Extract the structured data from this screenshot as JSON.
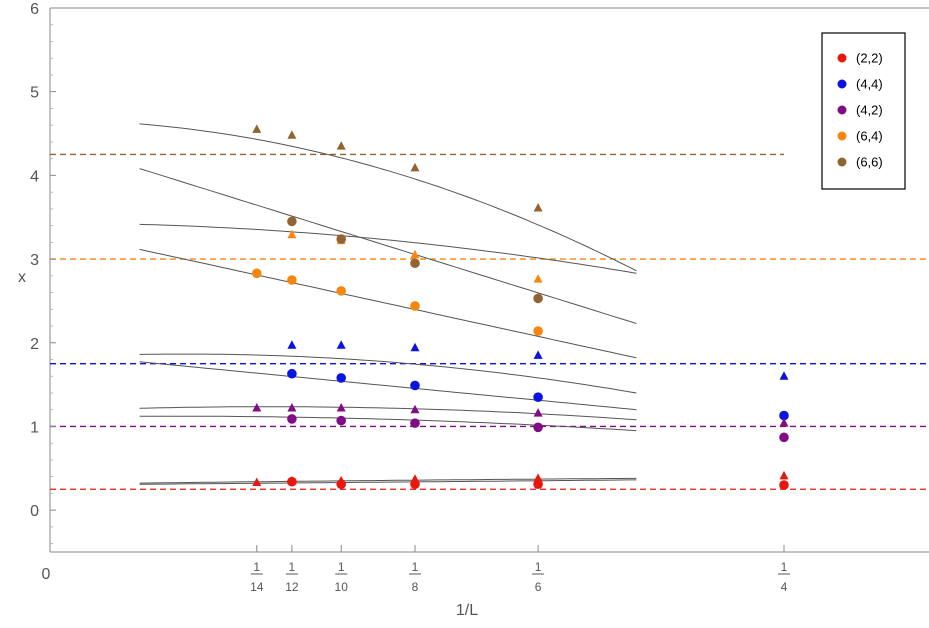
{
  "chart_data": {
    "type": "scatter",
    "title": "",
    "xlabel": "1/L",
    "ylabel": "x",
    "xlim": [
      0,
      0.35
    ],
    "ylim": [
      -0.5,
      6
    ],
    "grid": false,
    "legend_position": "top-right",
    "y_ticks": [
      "0",
      "1",
      "2",
      "3",
      "4",
      "5",
      "6"
    ],
    "x_origin_label": "0",
    "x_ticks": [
      {
        "value": 0.0714,
        "numerator": "1",
        "denominator": "14"
      },
      {
        "value": 0.0833,
        "numerator": "1",
        "denominator": "12"
      },
      {
        "value": 0.1,
        "numerator": "1",
        "denominator": "10"
      },
      {
        "value": 0.125,
        "numerator": "1",
        "denominator": "8"
      },
      {
        "value": 0.1667,
        "numerator": "1",
        "denominator": "6"
      },
      {
        "value": 0.25,
        "numerator": "1",
        "denominator": "4"
      }
    ],
    "series": [
      {
        "name": "(2,2)",
        "color": "#e8180c",
        "reference": 0.25,
        "circles": [
          [
            0.0833,
            0.34
          ],
          [
            0.1,
            0.31
          ],
          [
            0.125,
            0.31
          ],
          [
            0.1667,
            0.31
          ],
          [
            0.25,
            0.3
          ]
        ],
        "triangles": [
          [
            0.0714,
            0.33
          ],
          [
            0.0833,
            0.35
          ],
          [
            0.1,
            0.35
          ],
          [
            0.125,
            0.37
          ],
          [
            0.1667,
            0.38
          ],
          [
            0.25,
            0.41
          ]
        ],
        "curves": [
          [
            0.3,
            0.29,
            0.1
          ],
          [
            0.31,
            0.45,
            -0.5
          ]
        ]
      },
      {
        "name": "(4,4)",
        "color": "#0a14e0",
        "reference": 1.75,
        "circles": [
          [
            0.0833,
            1.63
          ],
          [
            0.1,
            1.58
          ],
          [
            0.125,
            1.49
          ],
          [
            0.1667,
            1.35
          ],
          [
            0.25,
            1.13
          ]
        ],
        "triangles": [
          [
            0.0833,
            1.97
          ],
          [
            0.1,
            1.97
          ],
          [
            0.125,
            1.94
          ],
          [
            0.1667,
            1.85
          ],
          [
            0.25,
            1.6
          ]
        ],
        "curves": [
          [
            1.88,
            -3.4,
            0
          ],
          [
            1.82,
            1.9,
            -20
          ]
        ]
      },
      {
        "name": "(4,2)",
        "color": "#800d85",
        "reference": 1.0,
        "circles": [
          [
            0.0833,
            1.09
          ],
          [
            0.1,
            1.07
          ],
          [
            0.125,
            1.04
          ],
          [
            0.1667,
            0.99
          ],
          [
            0.25,
            0.87
          ]
        ],
        "triangles": [
          [
            0.0714,
            1.22
          ],
          [
            0.0833,
            1.22
          ],
          [
            0.1,
            1.22
          ],
          [
            0.125,
            1.2
          ],
          [
            0.1667,
            1.16
          ],
          [
            0.25,
            1.04
          ]
        ],
        "curves": [
          [
            1.18,
            1.5,
            -10
          ],
          [
            1.11,
            0.6,
            -7
          ]
        ]
      },
      {
        "name": "(6,4)",
        "color": "#f7860e",
        "reference": 3.0,
        "circles": [
          [
            0.0714,
            2.83
          ],
          [
            0.0833,
            2.75
          ],
          [
            0.1,
            2.62
          ],
          [
            0.125,
            2.44
          ],
          [
            0.1667,
            2.14
          ]
        ],
        "triangles": [
          [
            0.0833,
            3.29
          ],
          [
            0.1,
            3.22
          ],
          [
            0.125,
            3.05
          ],
          [
            0.1667,
            2.76
          ]
        ],
        "curves": [
          [
            3.36,
            -7.7,
            0
          ],
          [
            3.43,
            0,
            -15
          ]
        ]
      },
      {
        "name": "(6,6)",
        "color": "#946333",
        "reference": 4.25,
        "circles": [
          [
            0.0833,
            3.45
          ],
          [
            0.1,
            3.24
          ],
          [
            0.125,
            2.95
          ],
          [
            0.1667,
            2.53
          ]
        ],
        "triangles": [
          [
            0.0714,
            4.55
          ],
          [
            0.0833,
            4.48
          ],
          [
            0.1,
            4.35
          ],
          [
            0.125,
            4.09
          ],
          [
            0.1667,
            3.61
          ]
        ],
        "curves": [
          [
            4.43,
            -11,
            0
          ],
          [
            4.66,
            0,
            -45
          ]
        ]
      }
    ]
  }
}
